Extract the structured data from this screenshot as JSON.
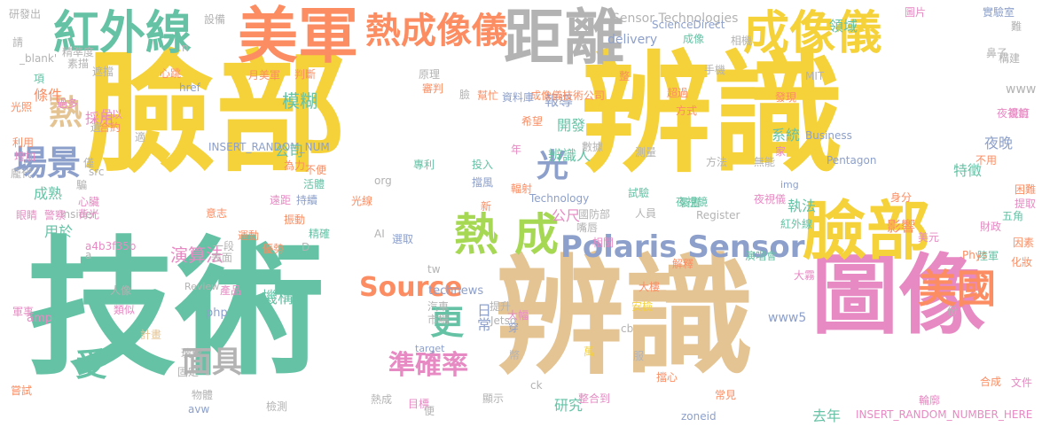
{
  "palette": {
    "yellow": "#f5d13a",
    "green": "#66c2a5",
    "tan": "#e5c494",
    "orange": "#fc8d62",
    "pink": "#e78ac3",
    "blue": "#8da0cb",
    "lime": "#a6d854",
    "grey": "#b3b3b3"
  },
  "words": [
    {
      "text": "臉部",
      "color": "#f5d13a"
    },
    {
      "text": "辨識",
      "color": "#f5d13a"
    },
    {
      "text": "技術",
      "color": "#66c2a5"
    },
    {
      "text": "辨識",
      "color": "#e5c494"
    },
    {
      "text": "圖像",
      "color": "#e78ac3"
    },
    {
      "text": "美軍",
      "color": "#fc8d62"
    },
    {
      "text": "距離",
      "color": "#b3b3b3"
    },
    {
      "text": "成像儀",
      "color": "#f5d13a"
    },
    {
      "text": "紅外線",
      "color": "#66c2a5"
    },
    {
      "text": "熱成像儀",
      "color": "#fc8d62"
    },
    {
      "text": "臉部",
      "color": "#f5d13a"
    },
    {
      "text": "美國",
      "color": "#fc8d62"
    },
    {
      "text": "熱",
      "color": "#a6d854"
    },
    {
      "text": "成",
      "color": "#a6d854"
    },
    {
      "text": "Polaris Sensor",
      "color": "#8da0cb"
    },
    {
      "text": "Source",
      "color": "#fc8d62"
    },
    {
      "text": "準確率",
      "color": "#e78ac3"
    },
    {
      "text": "面具",
      "color": "#b3b3b3"
    },
    {
      "text": "場景",
      "color": "#8da0cb"
    },
    {
      "text": "熱",
      "color": "#e5c494"
    },
    {
      "text": "更",
      "color": "#66c2a5"
    },
    {
      "text": "光",
      "color": "#8da0cb"
    },
    {
      "text": "受",
      "color": "#66c2a5"
    },
    {
      "text": "Sensor Technologies",
      "color": "#b3b3b3"
    },
    {
      "text": "INSERT_RANDOM_NUM",
      "color": "#8da0cb"
    },
    {
      "text": "INSERT_RANDOM_NUMBER_HERE",
      "color": "#e78ac3"
    },
    {
      "text": "ScienceDirect",
      "color": "#8da0cb"
    },
    {
      "text": "delivery",
      "color": "#8da0cb"
    },
    {
      "text": "Business",
      "color": "#8da0cb"
    },
    {
      "text": "Pentagon",
      "color": "#8da0cb"
    },
    {
      "text": "technews",
      "color": "#8da0cb"
    },
    {
      "text": "Technology",
      "color": "#8da0cb"
    },
    {
      "text": "Register",
      "color": "#b3b3b3"
    },
    {
      "text": "a4b3f35b",
      "color": "#e78ac3"
    },
    {
      "text": "Review",
      "color": "#b3b3b3"
    },
    {
      "text": "Insider",
      "color": "#b3b3b3"
    },
    {
      "text": "Jetso",
      "color": "#b3b3b3"
    },
    {
      "text": "zoneid",
      "color": "#8da0cb"
    },
    {
      "text": "target",
      "color": "#8da0cb"
    },
    {
      "text": "_blank'",
      "color": "#b3b3b3"
    },
    {
      "text": "www5",
      "color": "#8da0cb"
    },
    {
      "text": "www",
      "color": "#b3b3b3"
    },
    {
      "text": "MIT",
      "color": "#b3b3b3"
    },
    {
      "text": "Phys",
      "color": "#fc8d62"
    },
    {
      "text": "php",
      "color": "#8da0cb"
    },
    {
      "text": "amp",
      "color": "#e78ac3"
    },
    {
      "text": "href",
      "color": "#8da0cb"
    },
    {
      "text": "src",
      "color": "#b3b3b3"
    },
    {
      "text": "org",
      "color": "#b3b3b3"
    },
    {
      "text": "img",
      "color": "#8da0cb"
    },
    {
      "text": "avw",
      "color": "#8da0cb"
    },
    {
      "text": "tw",
      "color": "#b3b3b3"
    },
    {
      "text": "ck",
      "color": "#b3b3b3"
    },
    {
      "text": "cb",
      "color": "#b3b3b3"
    },
    {
      "text": "AI",
      "color": "#b3b3b3"
    },
    {
      "text": "模糊",
      "color": "#66c2a5"
    },
    {
      "text": "演算法",
      "color": "#e78ac3"
    },
    {
      "text": "公尺",
      "color": "#e78ac3"
    },
    {
      "text": "日常",
      "color": "#8da0cb"
    },
    {
      "text": "機構",
      "color": "#66c2a5"
    },
    {
      "text": "執法",
      "color": "#66c2a5"
    },
    {
      "text": "影響",
      "color": "#fc8d62"
    },
    {
      "text": "特徵",
      "color": "#66c2a5"
    },
    {
      "text": "夜晚",
      "color": "#8da0cb"
    },
    {
      "text": "系統",
      "color": "#66c2a5"
    },
    {
      "text": "領域",
      "color": "#66c2a5"
    },
    {
      "text": "報導",
      "color": "#8da0cb"
    },
    {
      "text": "開發",
      "color": "#66c2a5"
    },
    {
      "text": "辨識人",
      "color": "#66c2a5"
    },
    {
      "text": "成像儀技術公司",
      "color": "#fc8d62"
    },
    {
      "text": "資料庫",
      "color": "#8da0cb"
    },
    {
      "text": "專利",
      "color": "#66c2a5"
    },
    {
      "text": "公司",
      "color": "#66c2a5"
    },
    {
      "text": "研究",
      "color": "#66c2a5"
    },
    {
      "text": "去年",
      "color": "#66c2a5"
    },
    {
      "text": "整合到",
      "color": "#e78ac3"
    },
    {
      "text": "夜視鏡",
      "color": "#66c2a5"
    },
    {
      "text": "紅外線",
      "color": "#66c2a5"
    },
    {
      "text": "條件",
      "color": "#fc8d62"
    },
    {
      "text": "採用",
      "color": "#e78ac3"
    },
    {
      "text": "成熟",
      "color": "#66c2a5"
    },
    {
      "text": "用於",
      "color": "#66c2a5"
    },
    {
      "text": "背光",
      "color": "#e78ac3"
    },
    {
      "text": "眼睛",
      "color": "#e78ac3"
    },
    {
      "text": "警察",
      "color": "#e78ac3"
    },
    {
      "text": "產品",
      "color": "#e78ac3"
    },
    {
      "text": "運動",
      "color": "#fc8d62"
    },
    {
      "text": "優勢",
      "color": "#fc8d62"
    },
    {
      "text": "陸軍",
      "color": "#66c2a5"
    },
    {
      "text": "財政",
      "color": "#e78ac3"
    },
    {
      "text": "因素",
      "color": "#fc8d62"
    },
    {
      "text": "化妝",
      "color": "#fc8d62"
    },
    {
      "text": "演唱會",
      "color": "#66c2a5"
    },
    {
      "text": "實驗室",
      "color": "#8da0cb"
    },
    {
      "text": "圖片",
      "color": "#e78ac3"
    },
    {
      "text": "設備",
      "color": "#b3b3b3"
    },
    {
      "text": "心跳",
      "color": "#fc8d62"
    },
    {
      "text": "項",
      "color": "#66c2a5"
    },
    {
      "text": "素描",
      "color": "#b3b3b3"
    },
    {
      "text": "光照",
      "color": "#fc8d62"
    },
    {
      "text": "利用",
      "color": "#fc8d62"
    },
    {
      "text": "增加",
      "color": "#e78ac3"
    },
    {
      "text": "合約",
      "color": "#fc8d62"
    },
    {
      "text": "遮擋",
      "color": "#b3b3b3"
    },
    {
      "text": "月美軍",
      "color": "#fc8d62"
    },
    {
      "text": "判斷",
      "color": "#fc8d62"
    },
    {
      "text": "萬",
      "color": "#f5d13a"
    },
    {
      "text": "幫忙",
      "color": "#fc8d62"
    },
    {
      "text": "大霧",
      "color": "#e78ac3"
    },
    {
      "text": "大樓",
      "color": "#fc8d62"
    },
    {
      "text": "安檢",
      "color": "#f5d13a"
    },
    {
      "text": "解釋",
      "color": "#fc8d62"
    },
    {
      "text": "擋心",
      "color": "#fc8d62"
    },
    {
      "text": "穿",
      "color": "#8da0cb"
    },
    {
      "text": "提升",
      "color": "#b3b3b3"
    },
    {
      "text": "汽車",
      "color": "#b3b3b3"
    },
    {
      "text": "市場",
      "color": "#b3b3b3"
    },
    {
      "text": "相關",
      "color": "#e78ac3"
    },
    {
      "text": "遠距",
      "color": "#e78ac3"
    },
    {
      "text": "持續",
      "color": "#8da0cb"
    },
    {
      "text": "振動",
      "color": "#fc8d62"
    },
    {
      "text": "光線",
      "color": "#fc8d62"
    },
    {
      "text": "精確",
      "color": "#66c2a5"
    },
    {
      "text": "選取",
      "color": "#8da0cb"
    },
    {
      "text": "國防部",
      "color": "#b3b3b3"
    },
    {
      "text": "人員",
      "color": "#b3b3b3"
    },
    {
      "text": "嘴唇",
      "color": "#b3b3b3"
    },
    {
      "text": "裝置",
      "color": "#66c2a5"
    },
    {
      "text": "夜視儀",
      "color": "#e78ac3"
    },
    {
      "text": "試驗",
      "color": "#66c2a5"
    },
    {
      "text": "輻射",
      "color": "#fc8d62"
    },
    {
      "text": "投入",
      "color": "#66c2a5"
    },
    {
      "text": "擋風",
      "color": "#8da0cb"
    },
    {
      "text": "數據",
      "color": "#b3b3b3"
    },
    {
      "text": "測量",
      "color": "#b3b3b3"
    },
    {
      "text": "方法",
      "color": "#b3b3b3"
    },
    {
      "text": "無能",
      "color": "#b3b3b3"
    },
    {
      "text": "家",
      "color": "#e78ac3"
    },
    {
      "text": "不用",
      "color": "#fc8d62"
    },
    {
      "text": "身分",
      "color": "#fc8d62"
    },
    {
      "text": "困難",
      "color": "#fc8d62"
    },
    {
      "text": "五角",
      "color": "#66c2a5"
    },
    {
      "text": "提取",
      "color": "#e78ac3"
    },
    {
      "text": "簽訂",
      "color": "#e78ac3"
    },
    {
      "text": "發現",
      "color": "#fc8d62"
    },
    {
      "text": "夜視鏡",
      "color": "#e78ac3"
    },
    {
      "text": "構建",
      "color": "#b3b3b3"
    },
    {
      "text": "鼻子",
      "color": "#b3b3b3"
    },
    {
      "text": "難",
      "color": "#b3b3b3"
    },
    {
      "text": "手機",
      "color": "#b3b3b3"
    },
    {
      "text": "超過",
      "color": "#fc8d62"
    },
    {
      "text": "方式",
      "color": "#fc8d62"
    },
    {
      "text": "整",
      "color": "#fc8d62"
    },
    {
      "text": "成像",
      "color": "#66c2a5"
    },
    {
      "text": "相機",
      "color": "#b3b3b3"
    },
    {
      "text": "原理",
      "color": "#b3b3b3"
    },
    {
      "text": "審判",
      "color": "#fc8d62"
    },
    {
      "text": "為力",
      "color": "#fc8d62"
    },
    {
      "text": "適",
      "color": "#b3b3b3"
    },
    {
      "text": "不便",
      "color": "#fc8d62"
    },
    {
      "text": "活體",
      "color": "#66c2a5"
    },
    {
      "text": "年",
      "color": "#e78ac3"
    },
    {
      "text": "希望",
      "color": "#fc8d62"
    },
    {
      "text": "臉",
      "color": "#b3b3b3"
    },
    {
      "text": "一段",
      "color": "#b3b3b3"
    },
    {
      "text": "新",
      "color": "#fc8d62"
    },
    {
      "text": "表面",
      "color": "#b3b3b3"
    },
    {
      "text": "稽案",
      "color": "#66c2a5"
    },
    {
      "text": "類似",
      "color": "#e78ac3"
    },
    {
      "text": "人像",
      "color": "#b3b3b3"
    },
    {
      "text": "軍事",
      "color": "#e78ac3"
    },
    {
      "text": "固定",
      "color": "#b3b3b3"
    },
    {
      "text": "計畫",
      "color": "#e5c494"
    },
    {
      "text": "嘗試",
      "color": "#fc8d62"
    },
    {
      "text": "檢測",
      "color": "#b3b3b3"
    },
    {
      "text": "玻璃",
      "color": "#b3b3b3"
    },
    {
      "text": "物體",
      "color": "#b3b3b3"
    },
    {
      "text": "熱成",
      "color": "#b3b3b3"
    },
    {
      "text": "目標",
      "color": "#e78ac3"
    },
    {
      "text": "便",
      "color": "#b3b3b3"
    },
    {
      "text": "顯示",
      "color": "#b3b3b3"
    },
    {
      "text": "常見",
      "color": "#fc8d62"
    },
    {
      "text": "合成",
      "color": "#fc8d62"
    },
    {
      "text": "輪廓",
      "color": "#e78ac3"
    },
    {
      "text": "文件",
      "color": "#e78ac3"
    },
    {
      "text": "美元",
      "color": "#e78ac3"
    },
    {
      "text": "請",
      "color": "#b3b3b3"
    },
    {
      "text": "研發出",
      "color": "#b3b3b3"
    },
    {
      "text": "精準度",
      "color": "#b3b3b3"
    },
    {
      "text": "足以",
      "color": "#e78ac3"
    },
    {
      "text": "遺",
      "color": "#b3b3b3"
    },
    {
      "text": "過多",
      "color": "#e78ac3"
    },
    {
      "text": "心臟",
      "color": "#e78ac3"
    },
    {
      "text": "僅",
      "color": "#b3b3b3"
    },
    {
      "text": "龐代",
      "color": "#b3b3b3"
    },
    {
      "text": "騙",
      "color": "#b3b3b3"
    },
    {
      "text": "意志",
      "color": "#fc8d62"
    },
    {
      "text": "D",
      "color": "#b3b3b3"
    },
    {
      "text": "n",
      "color": "#b3b3b3"
    },
    {
      "text": "a",
      "color": "#b3b3b3"
    },
    {
      "text": "份",
      "color": "#b3b3b3"
    },
    {
      "text": "服",
      "color": "#b3b3b3"
    },
    {
      "text": "幣",
      "color": "#b3b3b3"
    },
    {
      "text": "大幅",
      "color": "#e78ac3"
    }
  ]
}
